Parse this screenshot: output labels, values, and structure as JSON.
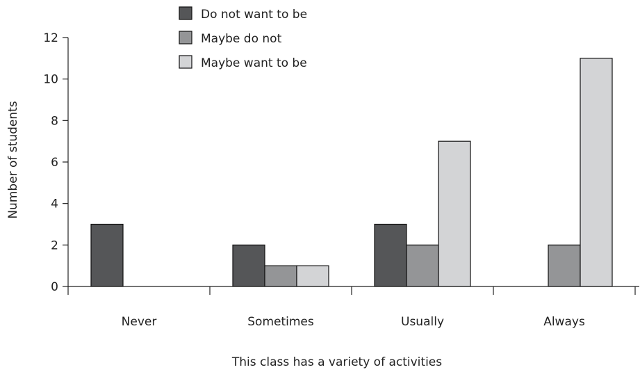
{
  "chart_data": {
    "type": "bar",
    "title": "",
    "xlabel": "This class has a variety of activities",
    "ylabel": "Number of students",
    "ylim": [
      0,
      12
    ],
    "yticks": [
      0,
      2,
      4,
      6,
      8,
      10,
      12
    ],
    "grid": false,
    "legend_position": "top",
    "categories": [
      "Never",
      "Sometimes",
      "Usually",
      "Always"
    ],
    "series": [
      {
        "name": "Do not want to be",
        "color": "#555658",
        "values": [
          3,
          2,
          3,
          0
        ]
      },
      {
        "name": "Maybe do not",
        "color": "#949597",
        "values": [
          0,
          1,
          2,
          2
        ]
      },
      {
        "name": "Maybe want to be",
        "color": "#d3d4d6",
        "values": [
          0,
          1,
          7,
          11
        ]
      }
    ]
  }
}
